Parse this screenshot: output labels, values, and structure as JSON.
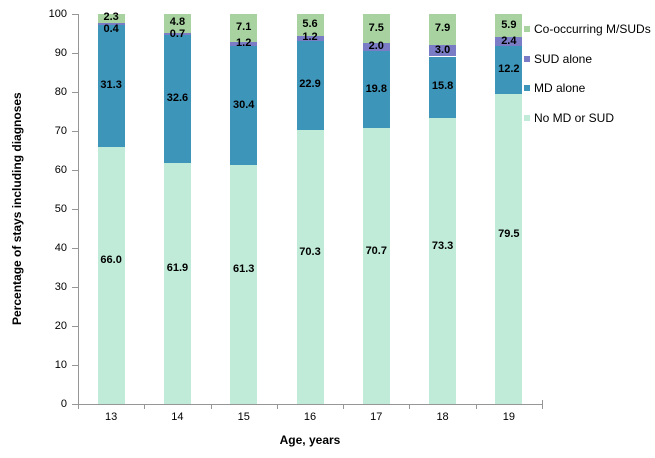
{
  "chart_data": {
    "type": "bar",
    "stacked": true,
    "xlabel": "Age, years",
    "ylabel": "Percentage of stays including diagnoses",
    "categories": [
      "13",
      "14",
      "15",
      "16",
      "17",
      "18",
      "19"
    ],
    "series": [
      {
        "name": "No MD or SUD",
        "color": "#bfebd8",
        "values": [
          66.0,
          61.9,
          61.3,
          70.3,
          70.7,
          73.3,
          79.5
        ]
      },
      {
        "name": "MD alone",
        "color": "#3e95ba",
        "values": [
          31.3,
          32.6,
          30.4,
          22.9,
          19.8,
          15.8,
          12.2
        ]
      },
      {
        "name": "SUD alone",
        "color": "#7a7dc6",
        "values": [
          0.4,
          0.7,
          1.2,
          1.2,
          2.0,
          3.0,
          2.4
        ]
      },
      {
        "name": "Co-occurring M/SUDs",
        "color": "#a8d3a1",
        "values": [
          2.3,
          4.8,
          7.1,
          5.6,
          7.5,
          7.9,
          5.9
        ]
      }
    ],
    "legend": {
      "position": "right",
      "entries": [
        "Co-occurring M/SUDs",
        "SUD alone",
        "MD alone",
        "No MD or SUD"
      ]
    },
    "ylim": [
      0,
      100
    ],
    "yticks": [
      0,
      10,
      20,
      30,
      40,
      50,
      60,
      70,
      80,
      90,
      100
    ],
    "grid": false,
    "axis_color": "#969696",
    "label_color": "#000000"
  }
}
